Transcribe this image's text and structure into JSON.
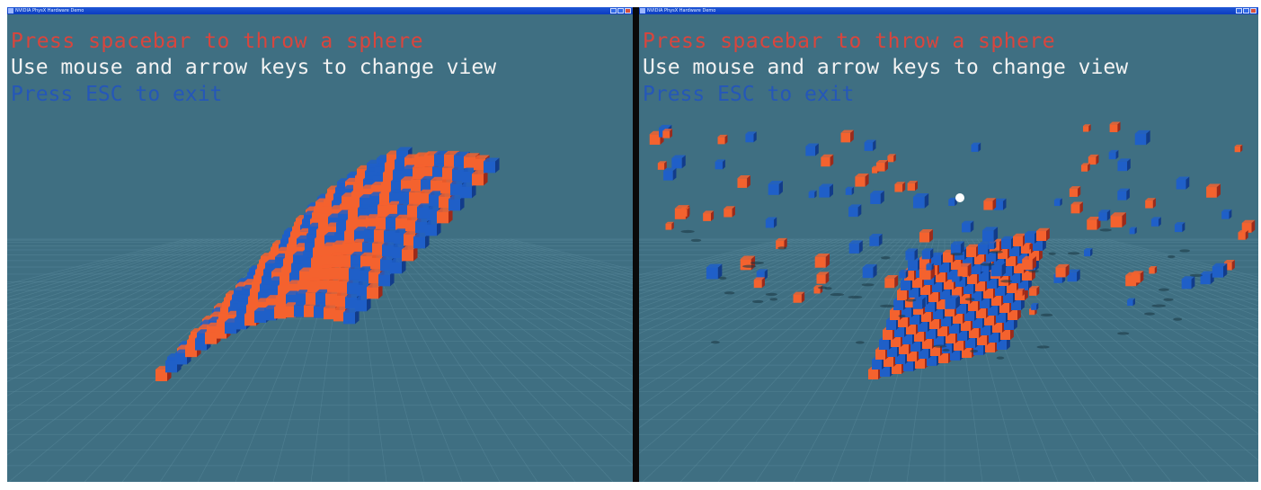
{
  "windows": [
    {
      "title": "NVIDIA PhysX Hardware Demo",
      "hud": {
        "line1": "Press spacebar to throw a sphere",
        "line2": "Use mouse and arrow keys to change view",
        "line3": "Press ESC to exit"
      },
      "scene": "intact-wall"
    },
    {
      "title": "NVIDIA PhysX Hardware Demo",
      "hud": {
        "line1": "Press spacebar to throw a sphere",
        "line2": "Use mouse and arrow keys to change view",
        "line3": "Press ESC to exit"
      },
      "scene": "exploding-wall"
    }
  ],
  "colors": {
    "background": "#3f6f82",
    "grid": "#5a8a9c",
    "cube_orange": "#f4622e",
    "cube_orange_dark": "#9c2a1a",
    "cube_blue": "#1f5fc8",
    "cube_blue_dark": "#123c8a",
    "hud_red": "#d9453d",
    "hud_white": "#f2f2f2",
    "hud_blue": "#2557b8",
    "titlebar": "#1f57d6"
  }
}
